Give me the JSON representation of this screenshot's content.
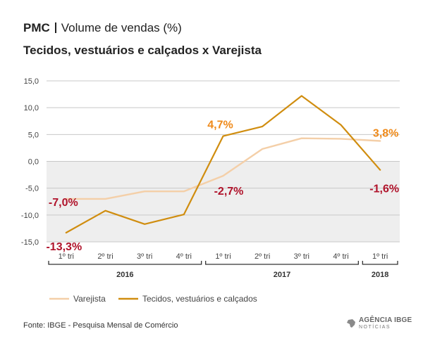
{
  "header": {
    "label": "PMC",
    "title": "Volume de vendas (%)",
    "subtitle": "Tecidos, vestuários e calçados x Varejista"
  },
  "chart_data": {
    "type": "line",
    "title": "Volume de vendas (%)",
    "subtitle": "Tecidos, vestuários e calçados x Varejista",
    "xlabel": "",
    "ylabel": "",
    "ylim": [
      -15,
      15
    ],
    "yticks": [
      15,
      10,
      5,
      0,
      -5,
      -10,
      -15
    ],
    "ytick_labels": [
      "15,0",
      "10,0",
      "5,0",
      "0,0",
      "-5,0",
      "-10,0",
      "-15,0"
    ],
    "categories": [
      "1º tri",
      "2º tri",
      "3º tri",
      "4º tri",
      "1º tri",
      "2º tri",
      "3º tri",
      "4º tri",
      "1º tri"
    ],
    "years": [
      {
        "label": "2016",
        "start": 0,
        "end": 3
      },
      {
        "label": "2017",
        "start": 4,
        "end": 7
      },
      {
        "label": "2018",
        "start": 8,
        "end": 8
      }
    ],
    "series": [
      {
        "name": "Varejista",
        "color": "#f4cfa8",
        "values": [
          -7.0,
          -7.0,
          -5.6,
          -5.6,
          -2.7,
          2.3,
          4.3,
          4.2,
          3.8
        ]
      },
      {
        "name": "Tecidos, vestuários e calçados",
        "color": "#d08d0f",
        "values": [
          -13.3,
          -9.2,
          -11.7,
          -9.9,
          4.7,
          6.5,
          12.2,
          6.8,
          -1.6
        ]
      }
    ],
    "annotations": [
      {
        "text": "-7,0%",
        "series": 0,
        "index": 0,
        "color": "#b0132b"
      },
      {
        "text": "-13,3%",
        "series": 1,
        "index": 0,
        "color": "#b0132b"
      },
      {
        "text": "4,7%",
        "series": 1,
        "index": 4,
        "color": "#ef8a1a"
      },
      {
        "text": "-2,7%",
        "series": 0,
        "index": 4,
        "color": "#b0132b"
      },
      {
        "text": "3,8%",
        "series": 0,
        "index": 8,
        "color": "#ef8a1a"
      },
      {
        "text": "-1,6%",
        "series": 1,
        "index": 8,
        "color": "#b0132b"
      }
    ],
    "negative_band_color": "#eeeeee",
    "grid": true,
    "legend": "bottom-left"
  },
  "footer": {
    "source": "Fonte: IBGE - Pesquisa Mensal de Comércio",
    "logo_line1": "AGÊNCIA IBGE",
    "logo_line2": "NOTÍCIAS"
  }
}
